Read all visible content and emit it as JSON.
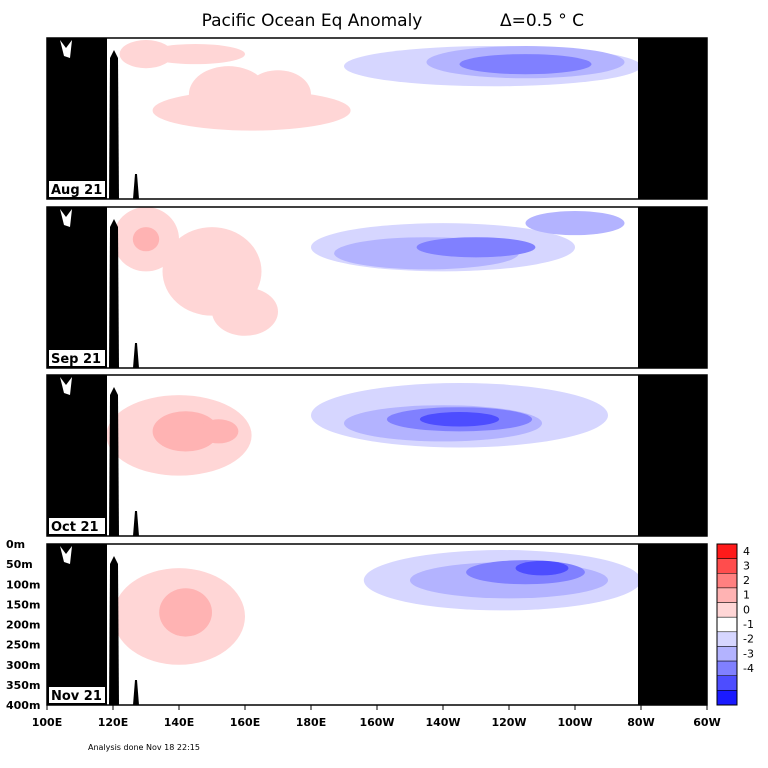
{
  "title": "Pacific Ocean Eq Anomaly",
  "interval_label": "Δ=0.5 ° C",
  "footer": "Analysis done Nov 18 22:15",
  "chart_data": {
    "type": "heatmap",
    "x_ticks": [
      "100E",
      "120E",
      "140E",
      "160E",
      "180E",
      "160W",
      "140W",
      "120W",
      "100W",
      "80W",
      "60W"
    ],
    "y_ticks": [
      "0m",
      "50m",
      "100m",
      "150m",
      "200m",
      "250m",
      "300m",
      "350m",
      "400m"
    ],
    "xlim": [
      "100E",
      "60W"
    ],
    "ylim": [
      "0m",
      "400m"
    ],
    "legend": {
      "position": "right",
      "labels": [
        "4",
        "3",
        "2",
        "1",
        "0",
        "-1",
        "-2",
        "-3",
        "-4"
      ],
      "colors": [
        "#ff1a1a",
        "#ff4d4d",
        "#ff8080",
        "#ffb3b3",
        "#ffd6d6",
        "#ffffff",
        "#d6d6ff",
        "#b3b3ff",
        "#8080ff",
        "#4d4dff",
        "#1a1aff"
      ]
    },
    "panels": [
      {
        "label": "Aug 21",
        "features": [
          {
            "sign": "warm",
            "lon": 130,
            "depth": 40,
            "rlon": 8,
            "rdep": 35,
            "level": 1
          },
          {
            "sign": "warm",
            "lon": 145,
            "depth": 40,
            "rlon": 15,
            "rdep": 25,
            "level": 1
          },
          {
            "sign": "warm",
            "lon": 155,
            "depth": 140,
            "rlon": 12,
            "rdep": 70,
            "level": 1
          },
          {
            "sign": "warm",
            "lon": 170,
            "depth": 140,
            "rlon": 10,
            "rdep": 60,
            "level": 1
          },
          {
            "sign": "warm",
            "lon": 162,
            "depth": 180,
            "rlon": 30,
            "rdep": 50,
            "level": 1
          },
          {
            "sign": "cool",
            "lon": 235,
            "depth": 70,
            "rlon": 45,
            "rdep": 50,
            "level": 1
          },
          {
            "sign": "cool",
            "lon": 245,
            "depth": 60,
            "rlon": 30,
            "rdep": 40,
            "level": 2
          },
          {
            "sign": "cool",
            "lon": 245,
            "depth": 65,
            "rlon": 20,
            "rdep": 25,
            "level": 3
          }
        ]
      },
      {
        "label": "Sep 21",
        "features": [
          {
            "sign": "warm",
            "lon": 130,
            "depth": 80,
            "rlon": 10,
            "rdep": 80,
            "level": 1
          },
          {
            "sign": "warm",
            "lon": 130,
            "depth": 80,
            "rlon": 4,
            "rdep": 30,
            "level": 2
          },
          {
            "sign": "warm",
            "lon": 150,
            "depth": 160,
            "rlon": 15,
            "rdep": 110,
            "level": 1
          },
          {
            "sign": "warm",
            "lon": 160,
            "depth": 260,
            "rlon": 10,
            "rdep": 60,
            "level": 1
          },
          {
            "sign": "cool",
            "lon": 220,
            "depth": 100,
            "rlon": 40,
            "rdep": 60,
            "level": 1
          },
          {
            "sign": "cool",
            "lon": 215,
            "depth": 115,
            "rlon": 28,
            "rdep": 40,
            "level": 2
          },
          {
            "sign": "cool",
            "lon": 230,
            "depth": 100,
            "rlon": 18,
            "rdep": 25,
            "level": 3
          },
          {
            "sign": "cool",
            "lon": 260,
            "depth": 40,
            "rlon": 15,
            "rdep": 30,
            "level": 2
          }
        ]
      },
      {
        "label": "Oct 21",
        "features": [
          {
            "sign": "warm",
            "lon": 140,
            "depth": 150,
            "rlon": 22,
            "rdep": 100,
            "level": 1
          },
          {
            "sign": "warm",
            "lon": 142,
            "depth": 140,
            "rlon": 10,
            "rdep": 50,
            "level": 2
          },
          {
            "sign": "warm",
            "lon": 152,
            "depth": 140,
            "rlon": 6,
            "rdep": 30,
            "level": 2
          },
          {
            "sign": "cool",
            "lon": 225,
            "depth": 100,
            "rlon": 45,
            "rdep": 80,
            "level": 1
          },
          {
            "sign": "cool",
            "lon": 220,
            "depth": 120,
            "rlon": 30,
            "rdep": 45,
            "level": 2
          },
          {
            "sign": "cool",
            "lon": 225,
            "depth": 110,
            "rlon": 22,
            "rdep": 30,
            "level": 3
          },
          {
            "sign": "cool",
            "lon": 225,
            "depth": 110,
            "rlon": 12,
            "rdep": 18,
            "level": 4
          }
        ]
      },
      {
        "label": "Nov 21",
        "features": [
          {
            "sign": "warm",
            "lon": 140,
            "depth": 180,
            "rlon": 20,
            "rdep": 120,
            "level": 1
          },
          {
            "sign": "warm",
            "lon": 142,
            "depth": 170,
            "rlon": 8,
            "rdep": 60,
            "level": 2
          },
          {
            "sign": "cool",
            "lon": 238,
            "depth": 90,
            "rlon": 42,
            "rdep": 75,
            "level": 1
          },
          {
            "sign": "cool",
            "lon": 240,
            "depth": 90,
            "rlon": 30,
            "rdep": 45,
            "level": 2
          },
          {
            "sign": "cool",
            "lon": 245,
            "depth": 70,
            "rlon": 18,
            "rdep": 30,
            "level": 3
          },
          {
            "sign": "cool",
            "lon": 250,
            "depth": 60,
            "rlon": 8,
            "rdep": 18,
            "level": 4
          }
        ]
      }
    ]
  }
}
